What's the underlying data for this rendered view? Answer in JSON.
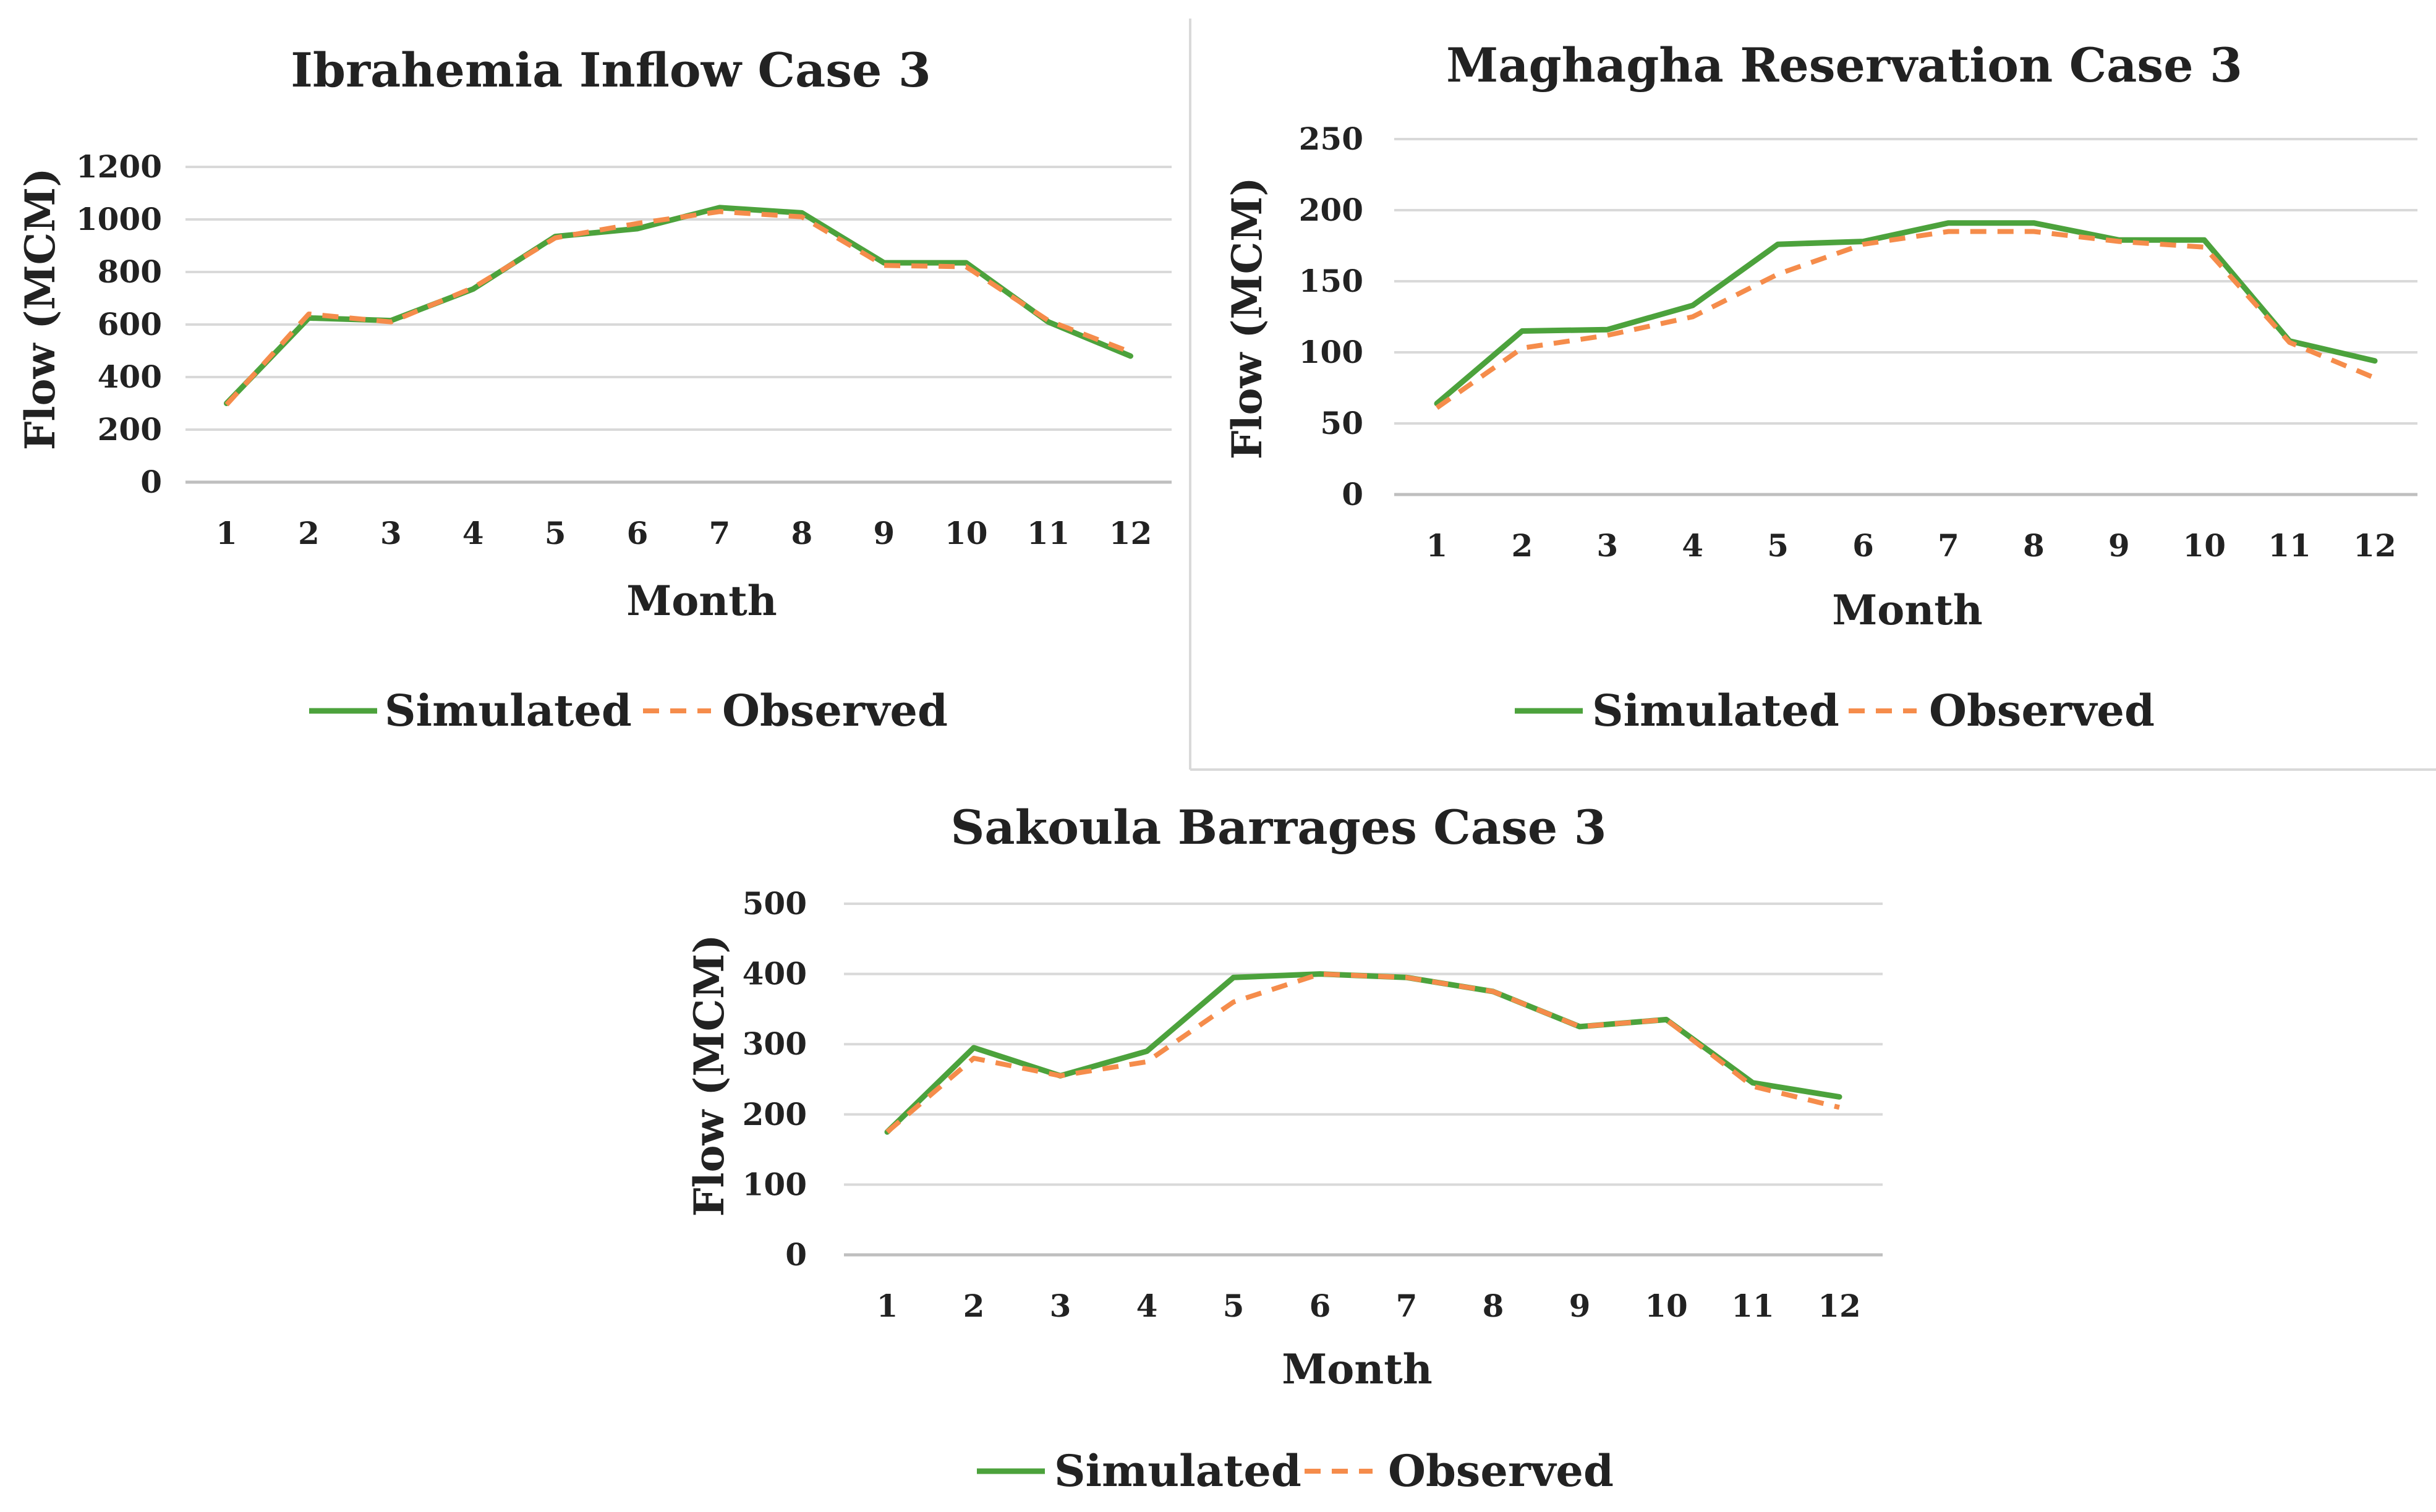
{
  "colors": {
    "simulated": "#4ca23c",
    "observed": "#f58c4b"
  },
  "legend": {
    "simulated_label": "Simulated",
    "observed_label": "Observed"
  },
  "chart_data": [
    {
      "type": "line",
      "title": "Ibrahemia Inflow Case 3",
      "xlabel": "Month",
      "ylabel": "Flow (MCM)",
      "categories": [
        "1",
        "2",
        "3",
        "4",
        "5",
        "6",
        "7",
        "8",
        "9",
        "10",
        "11",
        "12"
      ],
      "yticks": [
        0,
        200,
        400,
        600,
        800,
        1000,
        1200
      ],
      "ylim": [
        0,
        1200
      ],
      "legend_position": "bottom",
      "series": [
        {
          "name": "Simulated",
          "values": [
            300,
            625,
            615,
            735,
            935,
            965,
            1045,
            1025,
            835,
            835,
            610,
            480
          ]
        },
        {
          "name": "Observed",
          "values": [
            295,
            640,
            610,
            740,
            930,
            985,
            1030,
            1010,
            825,
            820,
            615,
            495
          ]
        }
      ]
    },
    {
      "type": "line",
      "title": "Maghagha Reservation Case 3",
      "xlabel": "Month",
      "ylabel": "Flow (MCM)",
      "categories": [
        "1",
        "2",
        "3",
        "4",
        "5",
        "6",
        "7",
        "8",
        "9",
        "10",
        "11",
        "12"
      ],
      "yticks": [
        0,
        50,
        100,
        150,
        200,
        250
      ],
      "ylim": [
        0,
        250
      ],
      "legend_position": "bottom",
      "series": [
        {
          "name": "Simulated",
          "values": [
            64,
            115,
            116,
            133,
            176,
            178,
            191,
            191,
            179,
            179,
            108,
            94
          ]
        },
        {
          "name": "Observed",
          "values": [
            61,
            103,
            112,
            125,
            155,
            176,
            185,
            185,
            178,
            174,
            107,
            82
          ]
        }
      ]
    },
    {
      "type": "line",
      "title": "Sakoula Barrages Case 3",
      "xlabel": "Month",
      "ylabel": "Flow (MCM)",
      "categories": [
        "1",
        "2",
        "3",
        "4",
        "5",
        "6",
        "7",
        "8",
        "9",
        "10",
        "11",
        "12"
      ],
      "yticks": [
        0,
        100,
        200,
        300,
        400,
        500
      ],
      "ylim": [
        0,
        500
      ],
      "legend_position": "bottom",
      "series": [
        {
          "name": "Simulated",
          "values": [
            175,
            295,
            255,
            290,
            395,
            400,
            395,
            375,
            325,
            335,
            245,
            225
          ]
        },
        {
          "name": "Observed",
          "values": [
            175,
            280,
            255,
            275,
            360,
            400,
            395,
            375,
            325,
            335,
            240,
            210
          ]
        }
      ]
    }
  ]
}
